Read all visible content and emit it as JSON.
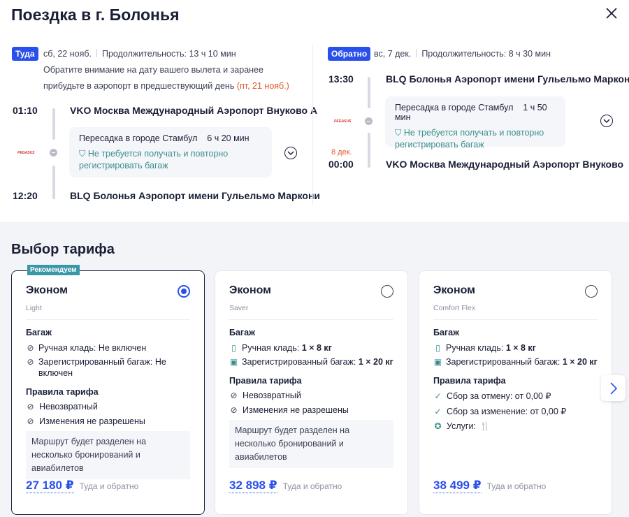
{
  "title": "Поездка в г. Болонья",
  "outbound": {
    "badge": "Туда",
    "date": "сб, 22 нояб.",
    "duration": "Продолжительность: 13 ч 10 мин",
    "note": "Обратите внимание на дату вашего вылета и заранее прибудьте в аэропорт в предшествующий день",
    "note_date": "(пт, 21 нояб.)",
    "dep_time": "01:10",
    "dep_airport": "VKO Москва Международный Аэропорт Внуково А",
    "transfer": "Пересадка в городе Стамбул",
    "transfer_time": "6 ч 20 мин",
    "baggage_note": "Не требуется получать и повторно регистрировать багаж",
    "arr_time": "12:20",
    "arr_airport": "BLQ Болонья Аэропорт имени Гульельмо Маркони",
    "airline_logo": "PEGASUS"
  },
  "return": {
    "badge": "Обратно",
    "date": "вс, 7 дек.",
    "duration": "Продолжительность: 8 ч 30 мин",
    "dep_time": "13:30",
    "dep_airport": "BLQ Болонья Аэропорт имени Гульельмо Маркони",
    "transfer": "Пересадка в городе Стамбул",
    "transfer_time": "1 ч 50 мин",
    "baggage_note": "Не требуется получать и повторно регистрировать багаж",
    "arr_date": "8 дек.",
    "arr_time": "00:00",
    "arr_airport": "VKO Москва Международный Аэропорт Внуково",
    "airline_logo": "PEGASUS"
  },
  "tariffs": {
    "title": "Выбор тарифа",
    "cards": [
      {
        "badge": "Рекомендуем",
        "name": "Эконом",
        "sub": "Light",
        "selected": true,
        "baggage_h": "Багаж",
        "hand": "Ручная кладь: ",
        "hand_v": "Не включен",
        "checked": "Зарегистрированный багаж: ",
        "checked_v": "Не включен",
        "rules_h": "Правила тарифа",
        "rules": [
          "Невозвратный",
          "Изменения не разрешены"
        ],
        "info": "Маршрут будет разделен на несколько бронирований и авиабилетов",
        "price": "27 180 ₽",
        "price_label": "Туда и обратно"
      },
      {
        "name": "Эконом",
        "sub": "Saver",
        "selected": false,
        "baggage_h": "Багаж",
        "hand": "Ручная кладь: ",
        "hand_v": "1 × 8 кг",
        "checked": "Зарегистрированный багаж: ",
        "checked_v": "1 × 20 кг",
        "rules_h": "Правила тарифа",
        "rules": [
          "Невозвратный",
          "Изменения не разрешены"
        ],
        "info": "Маршрут будет разделен на несколько бронирований и авиабилетов",
        "price": "32 898 ₽",
        "price_label": "Туда и обратно"
      },
      {
        "name": "Эконом",
        "sub": "Comfort Flex",
        "selected": false,
        "baggage_h": "Багаж",
        "hand": "Ручная кладь: ",
        "hand_v": "1 × 8 кг",
        "checked": "Зарегистрированный багаж: ",
        "checked_v": "1 × 20 кг",
        "rules_h": "Правила тарифа",
        "rules": [
          "Сбор за отмену: от 0,00 ₽",
          "Сбор за изменение: от 0,00 ₽",
          "Услуги:"
        ],
        "price": "38 499 ₽",
        "price_label": "Туда и обратно"
      }
    ]
  }
}
